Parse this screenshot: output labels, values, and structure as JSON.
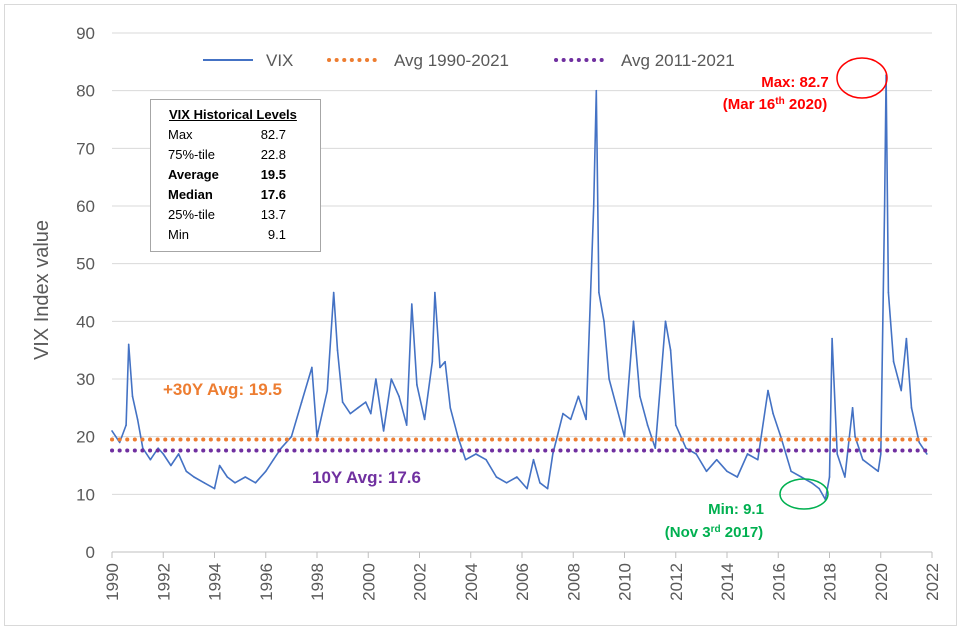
{
  "chart_data": {
    "type": "line",
    "title": "",
    "xlabel": "",
    "ylabel": "VIX Index value",
    "xlim": [
      1990,
      2022
    ],
    "ylim": [
      0,
      90
    ],
    "x_ticks": [
      "1990",
      "1992",
      "1994",
      "1996",
      "1998",
      "2000",
      "2002",
      "2004",
      "2006",
      "2008",
      "2010",
      "2012",
      "2014",
      "2016",
      "2018",
      "2020",
      "2022"
    ],
    "y_ticks": [
      "0",
      "10",
      "20",
      "30",
      "40",
      "50",
      "60",
      "70",
      "80",
      "90"
    ],
    "grid": "horizontal",
    "legend_position": "top",
    "legend": [
      "VIX",
      "Avg 1990-2021",
      "Avg 2011-2021"
    ],
    "series": [
      {
        "name": "VIX",
        "color": "#4472c4",
        "style": "solid",
        "x": [
          1990.0,
          1990.3,
          1990.55,
          1990.65,
          1990.8,
          1991.0,
          1991.2,
          1991.5,
          1991.8,
          1992.0,
          1992.3,
          1992.6,
          1992.9,
          1993.2,
          1993.6,
          1994.0,
          1994.2,
          1994.5,
          1994.8,
          1995.2,
          1995.6,
          1996.0,
          1996.3,
          1996.6,
          1997.0,
          1997.4,
          1997.8,
          1998.0,
          1998.4,
          1998.65,
          1998.8,
          1999.0,
          1999.3,
          1999.6,
          1999.9,
          2000.1,
          2000.3,
          2000.6,
          2000.9,
          2001.2,
          2001.5,
          2001.7,
          2001.9,
          2002.2,
          2002.5,
          2002.6,
          2002.8,
          2003.0,
          2003.2,
          2003.5,
          2003.8,
          2004.2,
          2004.6,
          2005.0,
          2005.4,
          2005.8,
          2006.2,
          2006.45,
          2006.7,
          2007.0,
          2007.2,
          2007.6,
          2007.9,
          2008.2,
          2008.5,
          2008.8,
          2008.9,
          2009.0,
          2009.2,
          2009.4,
          2009.7,
          2010.0,
          2010.35,
          2010.6,
          2010.9,
          2011.2,
          2011.6,
          2011.8,
          2012.0,
          2012.4,
          2012.8,
          2013.2,
          2013.6,
          2014.0,
          2014.4,
          2014.8,
          2015.2,
          2015.6,
          2015.8,
          2016.1,
          2016.5,
          2016.9,
          2017.3,
          2017.6,
          2017.84,
          2018.0,
          2018.1,
          2018.3,
          2018.6,
          2018.9,
          2019.0,
          2019.3,
          2019.6,
          2019.9,
          2020.0,
          2020.15,
          2020.21,
          2020.3,
          2020.5,
          2020.8,
          2021.0,
          2021.2,
          2021.5,
          2021.8
        ],
        "values": [
          21,
          19,
          22,
          36,
          27,
          23,
          18,
          16,
          18,
          17,
          15,
          17,
          14,
          13,
          12,
          11,
          15,
          13,
          12,
          13,
          12,
          14,
          16,
          18,
          20,
          26,
          32,
          20,
          28,
          45,
          35,
          26,
          24,
          25,
          26,
          24,
          30,
          21,
          30,
          27,
          22,
          43,
          29,
          23,
          33,
          45,
          32,
          33,
          25,
          20,
          16,
          17,
          16,
          13,
          12,
          13,
          11,
          16,
          12,
          11,
          17,
          24,
          23,
          27,
          23,
          60,
          80,
          45,
          40,
          30,
          25,
          20,
          40,
          27,
          22,
          18,
          40,
          35,
          22,
          18,
          17,
          14,
          16,
          14,
          13,
          17,
          16,
          28,
          24,
          20,
          14,
          13,
          12,
          11,
          9.1,
          13,
          37,
          17,
          13,
          25,
          20,
          16,
          15,
          14,
          17,
          60,
          82.7,
          45,
          33,
          28,
          37,
          25,
          19,
          17
        ]
      },
      {
        "name": "Avg 1990-2021",
        "color": "#ed7d31",
        "style": "dotted",
        "x": [
          1990,
          2021.8
        ],
        "values": [
          19.5,
          19.5
        ]
      },
      {
        "name": "Avg 2011-2021",
        "color": "#7030a0",
        "style": "dotted",
        "x": [
          1990,
          2021.8
        ],
        "values": [
          17.6,
          17.6
        ]
      }
    ],
    "annotations": {
      "max_line1": "Max: 82.7",
      "max_line2_pre": "(Mar 16",
      "max_line2_sup": "th",
      "max_line2_post": " 2020)",
      "min_line1": "Min: 9.1",
      "min_line2_pre": "(Nov 3",
      "min_line2_sup": "rd",
      "min_line2_post": " 2017)",
      "avg30": "+30Y Avg: 19.5",
      "avg10": "10Y Avg: 17.6",
      "max_color": "#ff0000",
      "min_color": "#00b050",
      "avg30_color": "#ed7d31",
      "avg10_color": "#7030a0"
    }
  },
  "stats_box": {
    "title": "VIX Historical Levels",
    "rows": [
      {
        "label": "Max",
        "value": "82.7"
      },
      {
        "label": "75%-tile",
        "value": "22.8"
      },
      {
        "label": "Average",
        "value": "19.5"
      },
      {
        "label": "Median",
        "value": "17.6"
      },
      {
        "label": "25%-tile",
        "value": "13.7"
      },
      {
        "label": "Min",
        "value": "9.1"
      }
    ]
  }
}
